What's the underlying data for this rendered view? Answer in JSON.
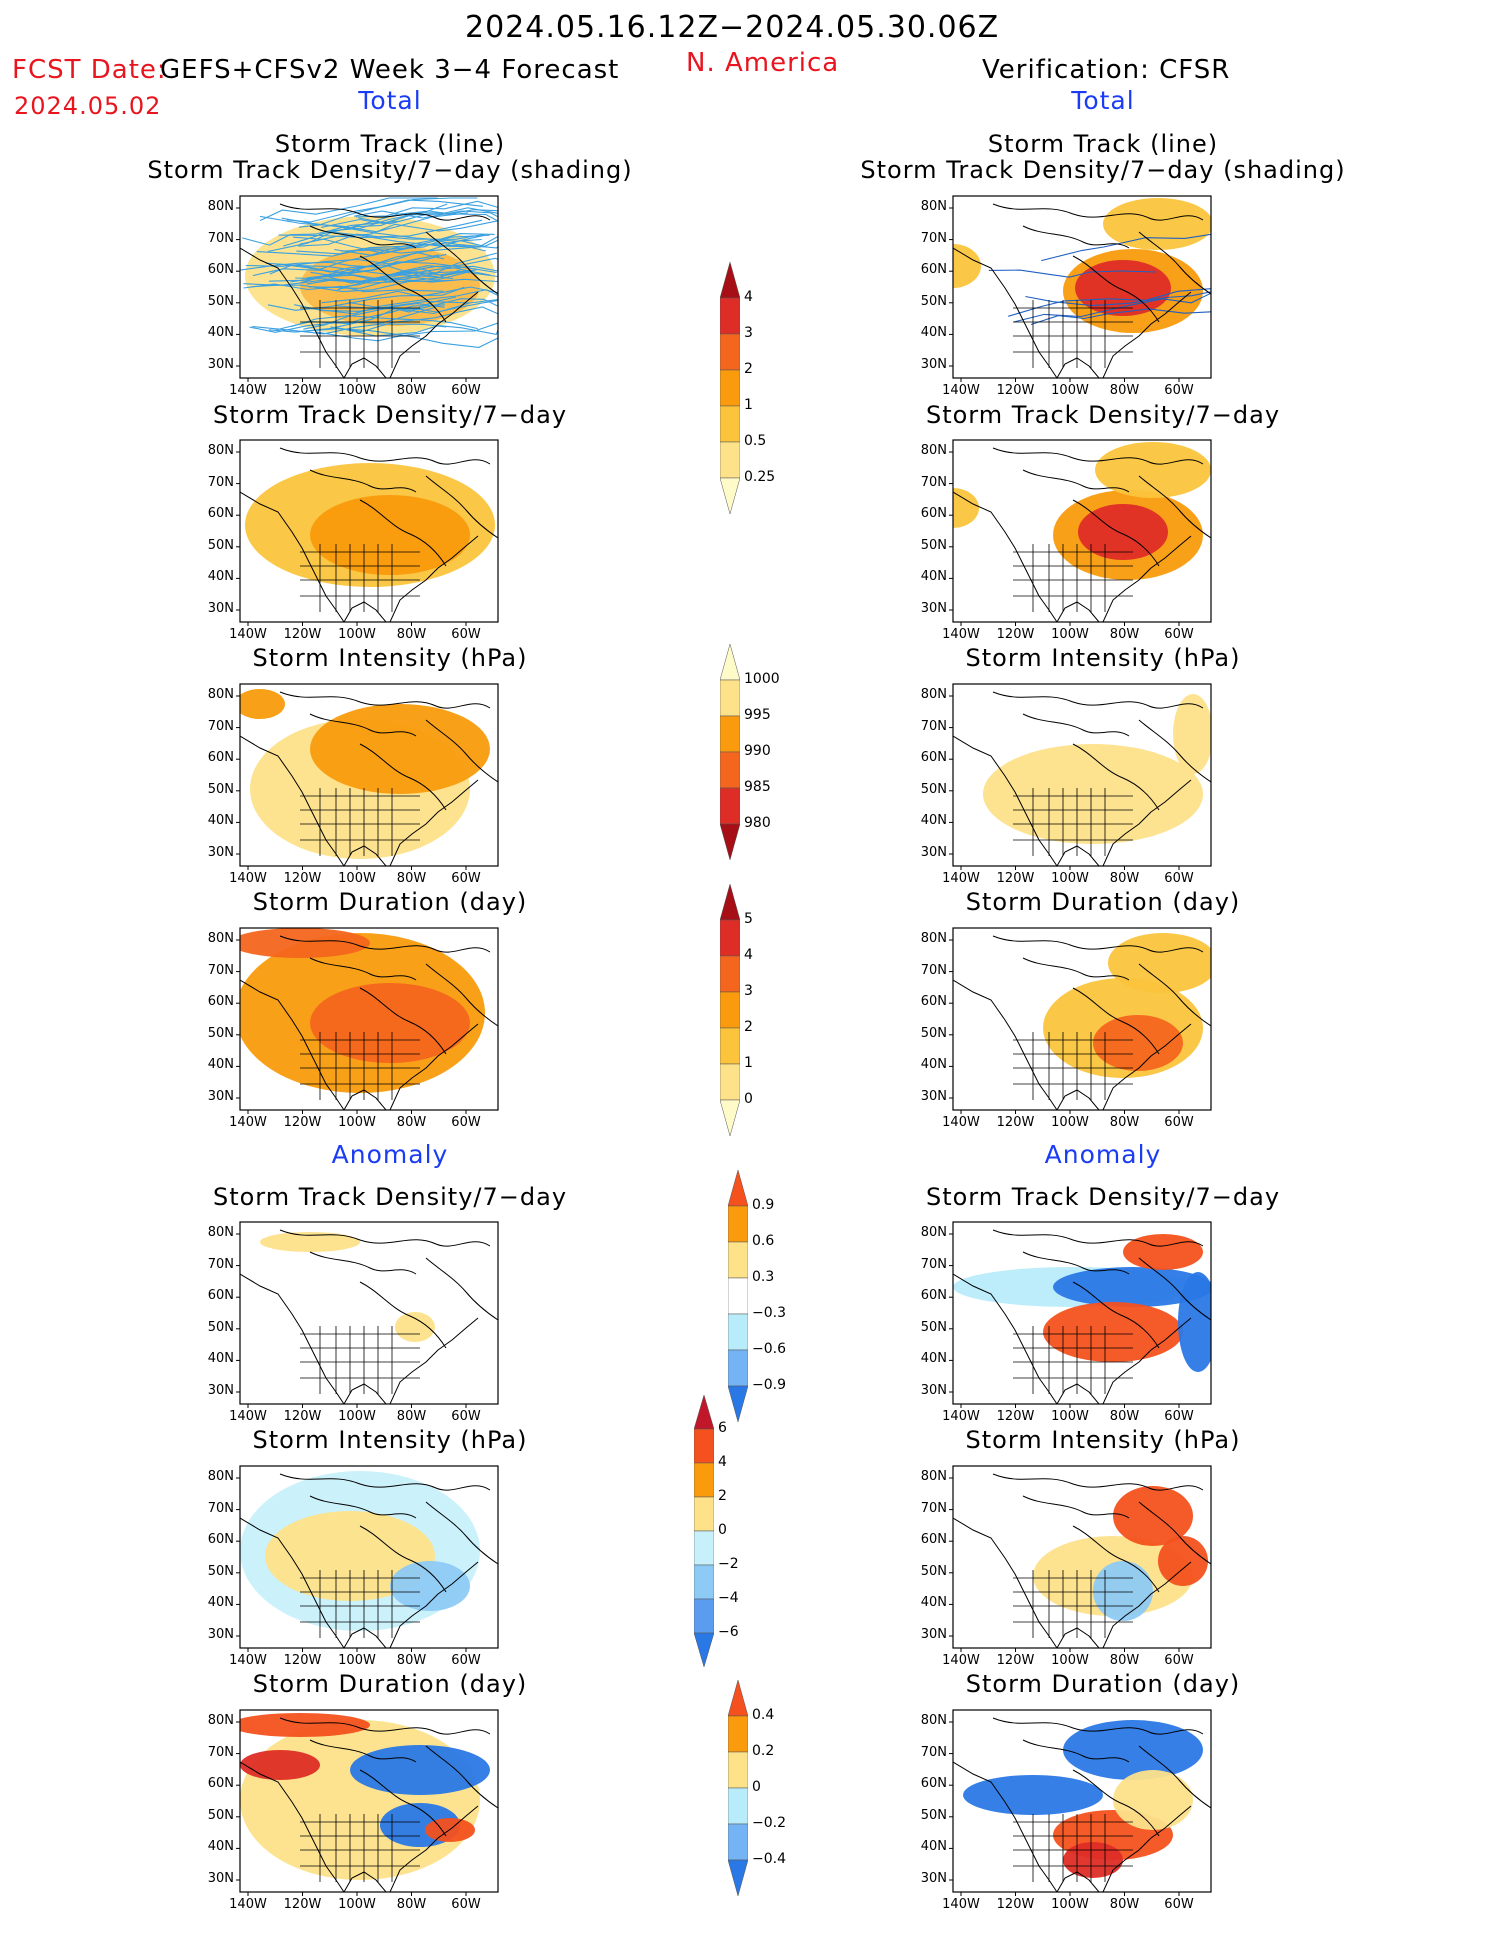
{
  "header": {
    "date_range": "2024.05.16.12Z−2024.05.30.06Z",
    "fcst_label": "FCST Date:",
    "fcst_model": "GEFS+CFSv2 Week 3−4 Forecast",
    "fcst_date": "2024.05.02",
    "region": "N. America",
    "verification": "Verification: CFSR"
  },
  "sections": {
    "total": "Total",
    "anomaly": "Anomaly"
  },
  "panel_titles": {
    "track_line": "Storm Track (line)",
    "track_shading": "Storm Track Density/7−day (shading)",
    "density": "Storm Track Density/7−day",
    "intensity": "Storm Intensity (hPa)",
    "duration": "Storm Duration (day)"
  },
  "axes": {
    "lat_labels": [
      "80N",
      "70N",
      "60N",
      "50N",
      "40N",
      "30N"
    ],
    "lon_labels": [
      "140W",
      "120W",
      "100W",
      "80W",
      "60W"
    ]
  },
  "colorbars": {
    "density_total": {
      "labels": [
        "4",
        "3",
        "2",
        "1",
        "0.5",
        "0.25"
      ],
      "colors": [
        "#a50f15",
        "#de2d26",
        "#f4661e",
        "#f99b0d",
        "#fbc43c",
        "#fde28a",
        "#fffbc8"
      ]
    },
    "intensity_total": {
      "labels": [
        "1000",
        "995",
        "990",
        "985",
        "980"
      ],
      "colors": [
        "#fffbc8",
        "#fde28a",
        "#f99b0d",
        "#f4661e",
        "#de2d26",
        "#a50f15"
      ]
    },
    "duration_total": {
      "labels": [
        "5",
        "4",
        "3",
        "2",
        "1",
        "0"
      ],
      "colors": [
        "#a50f15",
        "#de2d26",
        "#f4661e",
        "#f99b0d",
        "#fbc43c",
        "#fde28a",
        "#fffbc8"
      ]
    },
    "density_anom": {
      "labels": [
        "0.9",
        "0.6",
        "0.3",
        "−0.3",
        "−0.6",
        "−0.9"
      ],
      "colors": [
        "#f4511e",
        "#f99b0d",
        "#fde28a",
        "#ffffff",
        "#b9ecfa",
        "#74b4f5",
        "#2a78e6"
      ]
    },
    "intensity_anom": {
      "labels": [
        "6",
        "4",
        "2",
        "0",
        "−2",
        "−4",
        "−6"
      ],
      "colors": [
        "#c0182a",
        "#f4511e",
        "#f99b0d",
        "#fde28a",
        "#c8f0fb",
        "#8ecaf6",
        "#5b9cf0",
        "#2a78e6"
      ]
    },
    "duration_anom": {
      "labels": [
        "0.4",
        "0.2",
        "0",
        "−0.2",
        "−0.4"
      ],
      "colors": [
        "#f4511e",
        "#f99b0d",
        "#fde28a",
        "#b9ecfa",
        "#74b4f5",
        "#2a78e6"
      ]
    }
  }
}
